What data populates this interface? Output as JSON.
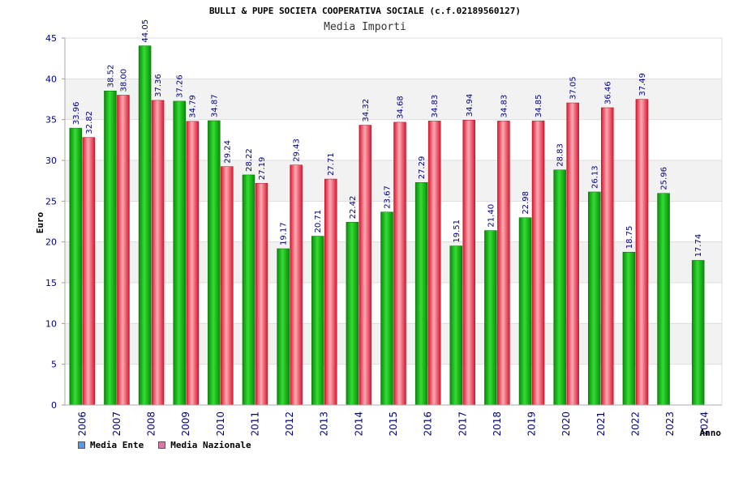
{
  "chart_data": {
    "type": "bar",
    "title": "BULLI & PUPE SOCIETA COOPERATIVA SOCIALE (c.f.02189560127)",
    "subtitle": "Media Importi",
    "xlabel": "Anno",
    "ylabel": "Euro",
    "ylim": [
      0,
      45
    ],
    "yticks": [
      "0",
      "5",
      "10",
      "15",
      "20",
      "25",
      "30",
      "35",
      "40",
      "45"
    ],
    "categories": [
      "2006",
      "2007",
      "2008",
      "2009",
      "2010",
      "2011",
      "2012",
      "2013",
      "2014",
      "2015",
      "2016",
      "2017",
      "2018",
      "2019",
      "2020",
      "2021",
      "2022",
      "2023",
      "2024"
    ],
    "series": [
      {
        "name": "Media Ente",
        "values": [
          33.96,
          38.52,
          44.05,
          37.26,
          34.87,
          28.22,
          19.17,
          20.71,
          22.42,
          23.67,
          27.29,
          19.51,
          21.4,
          22.98,
          28.83,
          26.13,
          18.75,
          25.96,
          17.74
        ],
        "labels": [
          "33.96",
          "38.52",
          "44.05",
          "37.26",
          "34.87",
          "28.22",
          "19.17",
          "20.71",
          "22.42",
          "23.67",
          "27.29",
          "19.51",
          "21.40",
          "22.98",
          "28.83",
          "26.13",
          "18.75",
          "25.96",
          "17.74"
        ]
      },
      {
        "name": "Media Nazionale",
        "values": [
          32.82,
          38.0,
          37.36,
          34.79,
          29.24,
          27.19,
          29.43,
          27.71,
          34.32,
          34.68,
          34.83,
          34.94,
          34.83,
          34.85,
          37.05,
          36.46,
          37.49,
          null,
          null
        ],
        "labels": [
          "32.82",
          "38.00",
          "37.36",
          "34.79",
          "29.24",
          "27.19",
          "29.43",
          "27.71",
          "34.32",
          "34.68",
          "34.83",
          "34.94",
          "34.83",
          "34.85",
          "37.05",
          "36.46",
          "37.49",
          "",
          ""
        ]
      }
    ],
    "grid": true,
    "legend_position": "bottom-left",
    "colors": {
      "ente": "#11bb11",
      "nazionale": "#ee3344",
      "legend_ente": "#5599ee",
      "legend_nazionale": "#dd77aa",
      "band": "#f2f2f2"
    }
  }
}
